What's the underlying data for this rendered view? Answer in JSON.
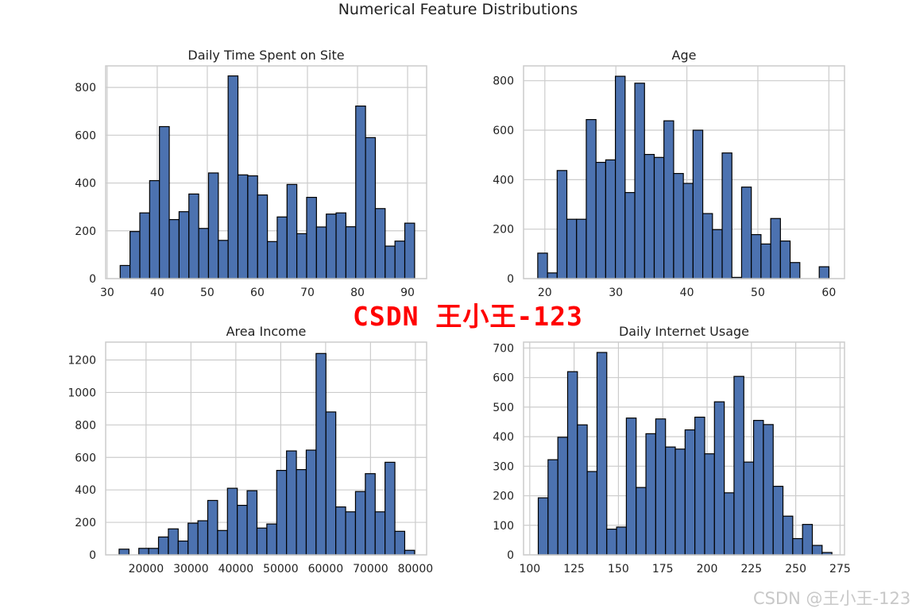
{
  "title": "Numerical Feature Distributions",
  "watermark_red": "CSDN 王小王-123",
  "watermark_gray": "CSDN @王小王-123",
  "colors": {
    "bar": "#4c72b0",
    "edge": "#000000",
    "grid": "#cccccc"
  },
  "chart_data": [
    {
      "type": "histogram",
      "title": "Daily Time Spent on Site",
      "bin_start": 32.6,
      "bin_width": 1.96,
      "values": [
        55,
        197,
        275,
        410,
        636,
        247,
        280,
        354,
        210,
        442,
        160,
        848,
        434,
        430,
        350,
        155,
        258,
        394,
        188,
        340,
        216,
        270,
        275,
        217,
        722,
        590,
        293,
        136,
        157,
        232
      ],
      "xlim": [
        29.7,
        93.8
      ],
      "ylim": [
        0,
        890
      ],
      "xticks": [
        30,
        40,
        50,
        60,
        70,
        80,
        90
      ],
      "yticks": [
        0,
        200,
        400,
        600,
        800
      ],
      "grid": true
    },
    {
      "type": "histogram",
      "title": "Age",
      "bin_start": 19,
      "bin_width": 1.367,
      "values": [
        103,
        23,
        437,
        240,
        240,
        643,
        470,
        480,
        818,
        348,
        790,
        502,
        490,
        638,
        425,
        385,
        600,
        263,
        198,
        508,
        5,
        370,
        178,
        140,
        243,
        152,
        65,
        0,
        0,
        48
      ],
      "xlim": [
        17.0,
        62.2
      ],
      "ylim": [
        0,
        860
      ],
      "xticks": [
        20,
        30,
        40,
        50,
        60
      ],
      "yticks": [
        0,
        200,
        400,
        600,
        800
      ],
      "grid": true
    },
    {
      "type": "histogram",
      "title": "Area Income",
      "bin_start": 13996,
      "bin_width": 2194,
      "values": [
        35,
        0,
        40,
        40,
        110,
        160,
        85,
        195,
        210,
        335,
        150,
        410,
        305,
        395,
        165,
        190,
        520,
        640,
        525,
        645,
        1240,
        880,
        295,
        265,
        390,
        500,
        265,
        570,
        145,
        28
      ],
      "xlim": [
        11000,
        82500
      ],
      "ylim": [
        0,
        1310
      ],
      "xticks": [
        20000,
        30000,
        40000,
        50000,
        60000,
        70000,
        80000
      ],
      "yticks": [
        0,
        200,
        400,
        600,
        800,
        1000,
        1200
      ],
      "grid": true
    },
    {
      "type": "histogram",
      "title": "Daily Internet Usage",
      "bin_start": 104.8,
      "bin_width": 5.52,
      "values": [
        193,
        322,
        398,
        620,
        440,
        282,
        685,
        87,
        94,
        463,
        228,
        410,
        460,
        365,
        358,
        423,
        466,
        342,
        518,
        210,
        604,
        314,
        455,
        441,
        232,
        131,
        55,
        103,
        32,
        8
      ],
      "xlim": [
        96.5,
        277.5
      ],
      "ylim": [
        0,
        720
      ],
      "xticks": [
        100,
        125,
        150,
        175,
        200,
        225,
        250,
        275
      ],
      "yticks": [
        0,
        100,
        200,
        300,
        400,
        500,
        600,
        700
      ],
      "grid": true
    }
  ]
}
